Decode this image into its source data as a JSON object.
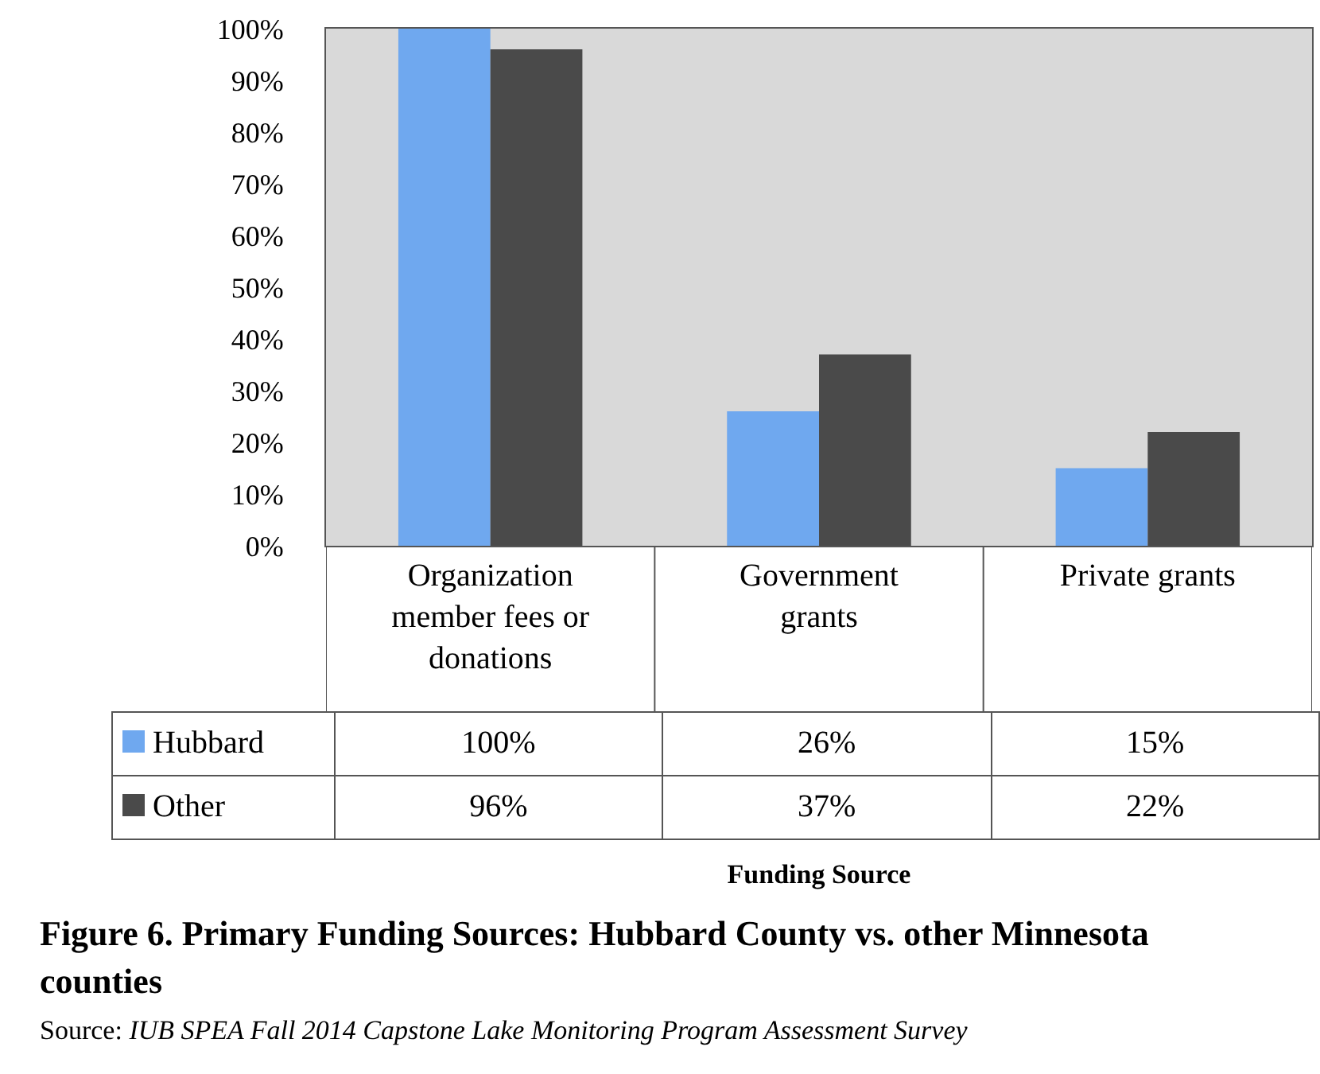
{
  "chart_data": {
    "type": "bar",
    "title": "Figure 6. Primary Funding Sources: Hubbard County vs. other Minnesota counties",
    "categories": [
      "Organization member fees or donations",
      "Government grants",
      "Private grants"
    ],
    "series": [
      {
        "name": "Hubbard",
        "color": "#6fa8ef",
        "values": [
          100,
          26,
          15
        ],
        "value_labels": [
          "100%",
          "26%",
          "15%"
        ]
      },
      {
        "name": "Other",
        "color": "#4a4a4a",
        "values": [
          96,
          37,
          22
        ],
        "value_labels": [
          "96%",
          "37%",
          "22%"
        ]
      }
    ],
    "ylim": [
      0,
      100
    ],
    "yticks": [
      {
        "value": 0,
        "label": "0%"
      },
      {
        "value": 10,
        "label": "10%"
      },
      {
        "value": 20,
        "label": "20%"
      },
      {
        "value": 30,
        "label": "30%"
      },
      {
        "value": 40,
        "label": "40%"
      },
      {
        "value": 50,
        "label": "50%"
      },
      {
        "value": 60,
        "label": "60%"
      },
      {
        "value": 70,
        "label": "70%"
      },
      {
        "value": 80,
        "label": "80%"
      },
      {
        "value": 90,
        "label": "90%"
      },
      {
        "value": 100,
        "label": "100%"
      }
    ],
    "grid": false,
    "legend": "bottom left",
    "annotations": [
      "Funding Source",
      "Source: IUB SPEA Fall 2014 Capstone Lake Monitoring Program Assessment Survey"
    ]
  }
}
